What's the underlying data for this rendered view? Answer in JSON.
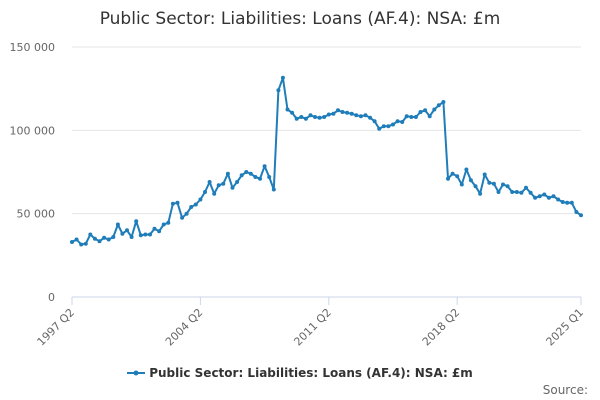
{
  "chart_data": {
    "type": "line",
    "title": "Public Sector: Liabilities: Loans (AF.4): NSA: £m",
    "xlabel": "",
    "ylabel": "",
    "ylim": [
      0,
      150000
    ],
    "yticks": [
      0,
      50000,
      100000,
      150000
    ],
    "ytick_labels": [
      "0",
      "50 000",
      "100 000",
      "150 000"
    ],
    "xtick_labels": [
      "1997 Q2",
      "2004 Q2",
      "2011 Q2",
      "2018 Q2",
      "2025 Q1"
    ],
    "grid": true,
    "legend_position": "bottom",
    "color": "#1f7db9",
    "series": [
      {
        "name": "Public Sector: Liabilities: Loans (AF.4): NSA: £m",
        "x": [
          "1997 Q2",
          "1997 Q3",
          "1997 Q4",
          "1998 Q1",
          "1998 Q2",
          "1998 Q3",
          "1998 Q4",
          "1999 Q1",
          "1999 Q2",
          "1999 Q3",
          "1999 Q4",
          "2000 Q1",
          "2000 Q2",
          "2000 Q3",
          "2000 Q4",
          "2001 Q1",
          "2001 Q2",
          "2001 Q3",
          "2001 Q4",
          "2002 Q1",
          "2002 Q2",
          "2002 Q3",
          "2002 Q4",
          "2003 Q1",
          "2003 Q2",
          "2003 Q3",
          "2003 Q4",
          "2004 Q1",
          "2004 Q2",
          "2004 Q3",
          "2004 Q4",
          "2005 Q1",
          "2005 Q2",
          "2005 Q3",
          "2005 Q4",
          "2006 Q1",
          "2006 Q2",
          "2006 Q3",
          "2006 Q4",
          "2007 Q1",
          "2007 Q2",
          "2007 Q3",
          "2007 Q4",
          "2008 Q1",
          "2008 Q2",
          "2008 Q3",
          "2008 Q4",
          "2009 Q1",
          "2009 Q2",
          "2009 Q3",
          "2009 Q4",
          "2010 Q1",
          "2010 Q2",
          "2010 Q3",
          "2010 Q4",
          "2011 Q1",
          "2011 Q2",
          "2011 Q3",
          "2011 Q4",
          "2012 Q1",
          "2012 Q2",
          "2012 Q3",
          "2012 Q4",
          "2013 Q1",
          "2013 Q2",
          "2013 Q3",
          "2013 Q4",
          "2014 Q1",
          "2014 Q2",
          "2014 Q3",
          "2014 Q4",
          "2015 Q1",
          "2015 Q2",
          "2015 Q3",
          "2015 Q4",
          "2016 Q1",
          "2016 Q2",
          "2016 Q3",
          "2016 Q4",
          "2017 Q1",
          "2017 Q2",
          "2017 Q3",
          "2017 Q4",
          "2018 Q1",
          "2018 Q2",
          "2018 Q3",
          "2018 Q4",
          "2019 Q1",
          "2019 Q2",
          "2019 Q3",
          "2019 Q4",
          "2020 Q1",
          "2020 Q2",
          "2020 Q3",
          "2020 Q4",
          "2021 Q1",
          "2021 Q2",
          "2021 Q3",
          "2021 Q4",
          "2022 Q1",
          "2022 Q2",
          "2022 Q3",
          "2022 Q4",
          "2023 Q1",
          "2023 Q2",
          "2023 Q3",
          "2023 Q4",
          "2024 Q1",
          "2024 Q2",
          "2024 Q3",
          "2024 Q4",
          "2025 Q1"
        ],
        "values": [
          33000,
          34500,
          31500,
          32000,
          37500,
          35000,
          33500,
          35500,
          34500,
          36000,
          43500,
          38000,
          40000,
          36000,
          45500,
          37000,
          37500,
          37500,
          41000,
          39500,
          43500,
          44500,
          56000,
          56500,
          47500,
          50000,
          54000,
          55500,
          58500,
          63000,
          69000,
          62000,
          67000,
          68000,
          74000,
          65500,
          69000,
          73000,
          75000,
          74000,
          72000,
          71000,
          78500,
          72000,
          64500,
          124000,
          131500,
          112500,
          110500,
          107000,
          108000,
          107000,
          109000,
          108000,
          107500,
          108000,
          109500,
          110000,
          112000,
          111000,
          110500,
          110000,
          109000,
          108500,
          109000,
          107500,
          105500,
          101000,
          102500,
          102500,
          103500,
          105500,
          105000,
          108500,
          108000,
          108000,
          111000,
          112000,
          108500,
          112500,
          115000,
          117000,
          71000,
          74000,
          72500,
          67500,
          76500,
          70000,
          66500,
          62000,
          73500,
          68500,
          68000,
          63000,
          67500,
          66500,
          63000,
          63000,
          62500,
          65500,
          62500,
          59500,
          60500,
          61500,
          59500,
          60500,
          58500,
          57000,
          56500,
          56500,
          51000,
          49000
        ]
      }
    ],
    "source_label": "Source:"
  }
}
